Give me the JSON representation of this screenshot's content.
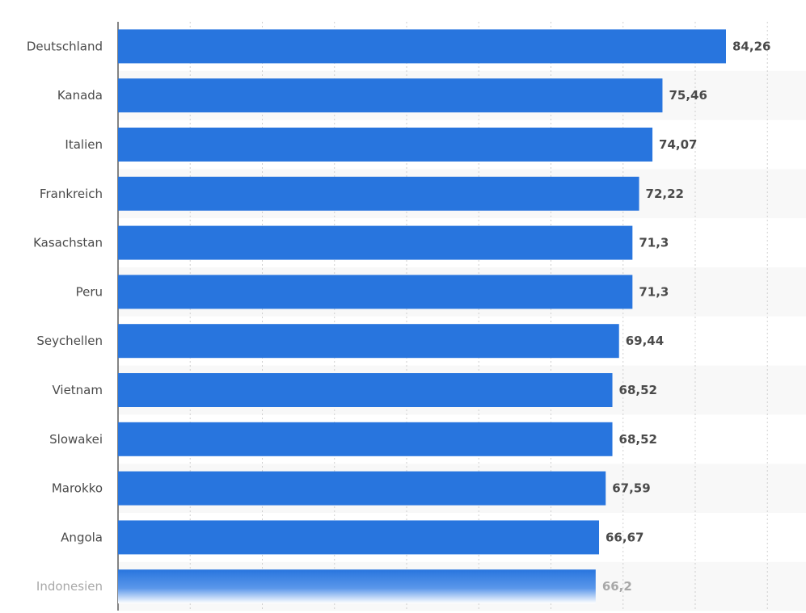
{
  "chart_data": {
    "type": "bar",
    "orientation": "horizontal",
    "categories": [
      "Deutschland",
      "Kanada",
      "Italien",
      "Frankreich",
      "Kasachstan",
      "Peru",
      "Seychellen",
      "Vietnam",
      "Slowakei",
      "Marokko",
      "Angola",
      "Indonesien"
    ],
    "values": [
      84.26,
      75.46,
      74.07,
      72.22,
      71.3,
      71.3,
      69.44,
      68.52,
      68.52,
      67.59,
      66.67,
      66.2
    ],
    "value_labels": [
      "84,26",
      "75,46",
      "74,07",
      "72,22",
      "71,3",
      "71,3",
      "69,44",
      "68,52",
      "68,52",
      "67,59",
      "66,67",
      "66,2"
    ],
    "xlim": [
      0,
      90
    ],
    "grid": "vertical dotted",
    "bar_color": "#2875de",
    "faded_last_row": true
  }
}
